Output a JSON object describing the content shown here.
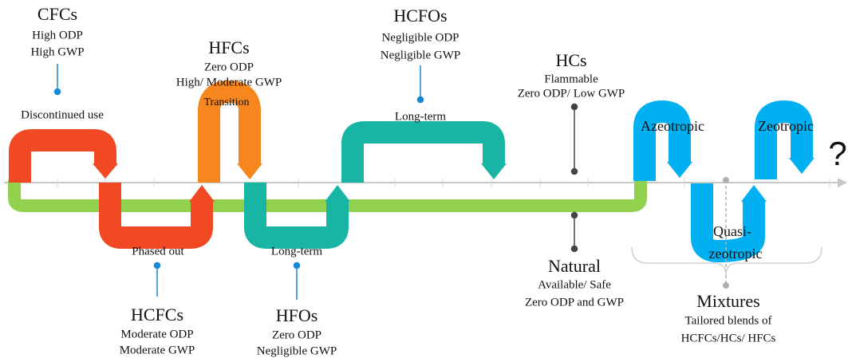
{
  "refrigerants": [
    {
      "name": "CFCs",
      "properties": [
        "High ODP",
        "High GWP"
      ],
      "stage": "Discontinued use"
    },
    {
      "name": "HCFCs",
      "properties": [
        "Moderate ODP",
        "Moderate GWP"
      ],
      "stage": "Phased out"
    },
    {
      "name": "HFCs",
      "properties": [
        "Zero ODP",
        "High/ Moderate GWP"
      ],
      "stage": "Transition"
    },
    {
      "name": "HFOs",
      "properties": [
        "Zero ODP",
        "Negligible GWP"
      ],
      "stage": "Long-term"
    },
    {
      "name": "HCFOs",
      "properties": [
        "Negligible ODP",
        "Negligible GWP"
      ],
      "stage": "Long-term"
    },
    {
      "name": "HCs",
      "properties": [
        "Flammable",
        "Zero ODP/ Low GWP"
      ]
    }
  ],
  "natural": {
    "name": "Natural",
    "properties": [
      "Available/ Safe",
      "Zero ODP and GWP"
    ]
  },
  "mixtures": {
    "name": "Mixtures",
    "properties": [
      "Tailored blends of",
      "HCFCs/HCs/ HFCs"
    ],
    "types": [
      "Azeotropic",
      "Zeotropic"
    ],
    "quasi": [
      "Quasi-",
      "zeotropic"
    ]
  },
  "future": "?"
}
